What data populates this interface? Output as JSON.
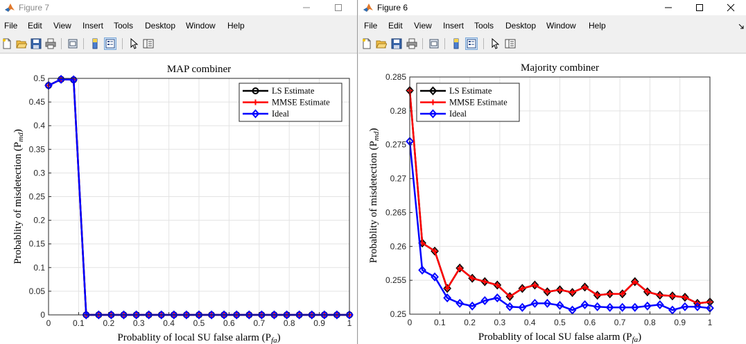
{
  "windows": [
    {
      "id": "win1",
      "title": "Figure 7",
      "menus": [
        "File",
        "Edit",
        "View",
        "Insert",
        "Tools",
        "Desktop",
        "Window",
        "Help"
      ],
      "chart_data": {
        "type": "line",
        "title": "MAP combiner",
        "xlabel": "Probablity of local SU false alarm (P",
        "xlabel_sub": "fa",
        "ylabel": "Probablity of misdetection (P",
        "ylabel_sub": "md",
        "xlim": [
          0,
          1
        ],
        "ylim": [
          0,
          0.5
        ],
        "xticks": [
          "0",
          "0.1",
          "0.2",
          "0.3",
          "0.4",
          "0.5",
          "0.6",
          "0.7",
          "0.8",
          "0.9",
          "1"
        ],
        "yticks": [
          "0",
          "0.05",
          "0.1",
          "0.15",
          "0.2",
          "0.25",
          "0.3",
          "0.35",
          "0.4",
          "0.45",
          "0.5"
        ],
        "grid": true,
        "legend_position": "top-right",
        "x": [
          0,
          0.0417,
          0.0833,
          0.125,
          0.1667,
          0.2083,
          0.25,
          0.2917,
          0.3333,
          0.375,
          0.4167,
          0.4583,
          0.5,
          0.5417,
          0.5833,
          0.625,
          0.6667,
          0.7083,
          0.75,
          0.7917,
          0.8333,
          0.875,
          0.9167,
          0.9583,
          1
        ],
        "series": [
          {
            "name": "LS Estimate",
            "color": "#000000",
            "marker": "circle",
            "values": [
              0.485,
              0.498,
              0.497,
              0,
              0,
              0,
              0,
              0,
              0,
              0,
              0,
              0,
              0,
              0,
              0,
              0,
              0,
              0,
              0,
              0,
              0,
              0,
              0,
              0,
              0
            ]
          },
          {
            "name": "MMSE Estimate",
            "color": "#ff0000",
            "marker": "plus",
            "values": [
              0.485,
              0.498,
              0.497,
              0,
              0,
              0,
              0,
              0,
              0,
              0,
              0,
              0,
              0,
              0,
              0,
              0,
              0,
              0,
              0,
              0,
              0,
              0,
              0,
              0,
              0
            ]
          },
          {
            "name": "Ideal",
            "color": "#0000ff",
            "marker": "diamond",
            "values": [
              0.485,
              0.498,
              0.497,
              0,
              0,
              0,
              0,
              0,
              0,
              0,
              0,
              0,
              0,
              0,
              0,
              0,
              0,
              0,
              0,
              0,
              0,
              0,
              0,
              0,
              0
            ]
          }
        ]
      }
    },
    {
      "id": "win2",
      "title": "Figure 6",
      "menus": [
        "File",
        "Edit",
        "View",
        "Insert",
        "Tools",
        "Desktop",
        "Window",
        "Help"
      ],
      "chart_data": {
        "type": "line",
        "title": "Majority combiner",
        "xlabel": "Probablity of local SU false alarm (P",
        "xlabel_sub": "fa",
        "ylabel": "Probablity of misdetection (P",
        "ylabel_sub": "md",
        "xlim": [
          0,
          1
        ],
        "ylim": [
          0.25,
          0.285
        ],
        "xticks": [
          "0",
          "0.1",
          "0.2",
          "0.3",
          "0.4",
          "0.5",
          "0.6",
          "0.7",
          "0.8",
          "0.9",
          "1"
        ],
        "yticks": [
          "0.25",
          "0.255",
          "0.26",
          "0.265",
          "0.27",
          "0.275",
          "0.28",
          "0.285"
        ],
        "grid": true,
        "legend_position": "top-left",
        "x": [
          0,
          0.0417,
          0.0833,
          0.125,
          0.1667,
          0.2083,
          0.25,
          0.2917,
          0.3333,
          0.375,
          0.4167,
          0.4583,
          0.5,
          0.5417,
          0.5833,
          0.625,
          0.6667,
          0.7083,
          0.75,
          0.7917,
          0.8333,
          0.875,
          0.9167,
          0.9583,
          1
        ],
        "series": [
          {
            "name": "LS Estimate",
            "color": "#000000",
            "marker": "diamond",
            "values": [
              0.283,
              0.2605,
              0.2593,
              0.2538,
              0.2568,
              0.2553,
              0.2548,
              0.2543,
              0.2526,
              0.2538,
              0.2543,
              0.2533,
              0.2536,
              0.2532,
              0.254,
              0.2528,
              0.253,
              0.253,
              0.2548,
              0.2533,
              0.2528,
              0.2527,
              0.2525,
              0.2516,
              0.2518
            ]
          },
          {
            "name": "MMSE Estimate",
            "color": "#ff0000",
            "marker": "plus",
            "values": [
              0.283,
              0.2605,
              0.2593,
              0.2538,
              0.2568,
              0.2553,
              0.2548,
              0.2543,
              0.2526,
              0.2538,
              0.2543,
              0.2533,
              0.2536,
              0.2532,
              0.254,
              0.2528,
              0.253,
              0.253,
              0.2548,
              0.2533,
              0.2528,
              0.2527,
              0.2525,
              0.2516,
              0.2518
            ]
          },
          {
            "name": "Ideal",
            "color": "#0000ff",
            "marker": "diamond",
            "values": [
              0.2755,
              0.2565,
              0.2555,
              0.2524,
              0.2516,
              0.2512,
              0.252,
              0.2524,
              0.2511,
              0.251,
              0.2516,
              0.2516,
              0.2513,
              0.2506,
              0.2514,
              0.2511,
              0.251,
              0.251,
              0.251,
              0.2512,
              0.2514,
              0.2506,
              0.2511,
              0.2511,
              0.2509
            ]
          }
        ]
      }
    }
  ]
}
